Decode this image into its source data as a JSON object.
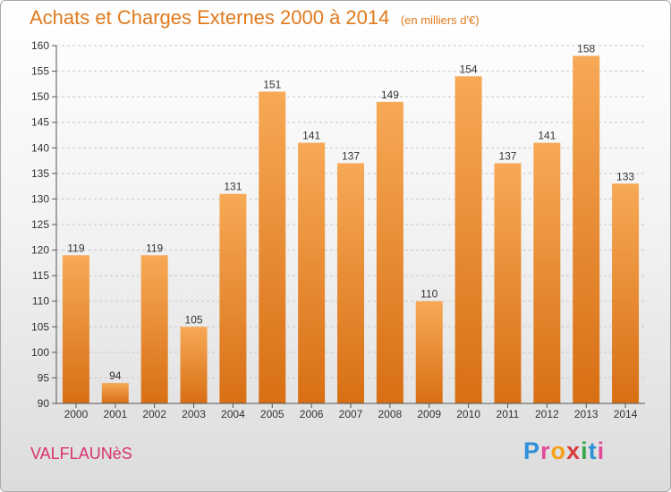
{
  "header": {
    "title": "Achats et Charges Externes 2000 à 2014",
    "subtitle": "(en milliers d'€)"
  },
  "footer": {
    "commune": "VALFLAUNèS",
    "logo": {
      "p": "P",
      "r": "r",
      "o": "o",
      "x": "x",
      "i": "i",
      "t": "t",
      "i2": "i"
    }
  },
  "colors": {
    "accent": "#e07a1e",
    "bar_top": "#f7a956",
    "bar_bottom": "#d86f14",
    "commune": "#d8326f"
  },
  "chart_data": {
    "type": "bar",
    "title": "Achats et Charges Externes 2000 à 2014",
    "subtitle": "(en milliers d'€)",
    "categories": [
      "2000",
      "2001",
      "2002",
      "2003",
      "2004",
      "2005",
      "2006",
      "2007",
      "2008",
      "2009",
      "2010",
      "2011",
      "2012",
      "2013",
      "2014"
    ],
    "values": [
      119,
      94,
      119,
      105,
      131,
      151,
      141,
      137,
      149,
      110,
      154,
      137,
      141,
      158,
      133
    ],
    "ylim": [
      90,
      160
    ],
    "yticks": [
      90,
      95,
      100,
      105,
      110,
      115,
      120,
      125,
      130,
      135,
      140,
      145,
      150,
      155,
      160
    ],
    "grid": "horizontal dashed",
    "xlabel": "",
    "ylabel": ""
  }
}
